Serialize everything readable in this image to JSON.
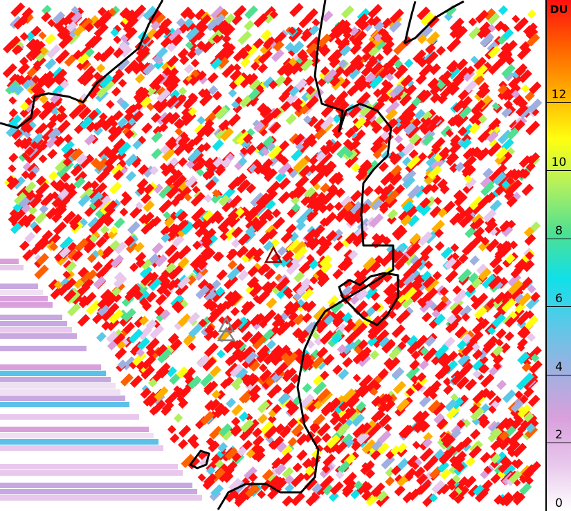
{
  "colorbar": {
    "unit": "DU",
    "min": 0,
    "max": 15,
    "ticks": [
      "0",
      "2",
      "4",
      "6",
      "8",
      "10",
      "12"
    ],
    "colors": [
      "#ffffff",
      "#e8c8ec",
      "#d9a0dc",
      "#9fb0e0",
      "#5cc8e8",
      "#10e0e8",
      "#50e090",
      "#b0f060",
      "#ffff10",
      "#ffb000",
      "#ff6000",
      "#ff1010"
    ]
  },
  "markers": [
    {
      "name": "volcano-primary",
      "color": "#8b0000"
    },
    {
      "name": "volcano-secondary",
      "color": "#808080"
    },
    {
      "name": "volcano-tertiary",
      "color": "#808080"
    }
  ]
}
